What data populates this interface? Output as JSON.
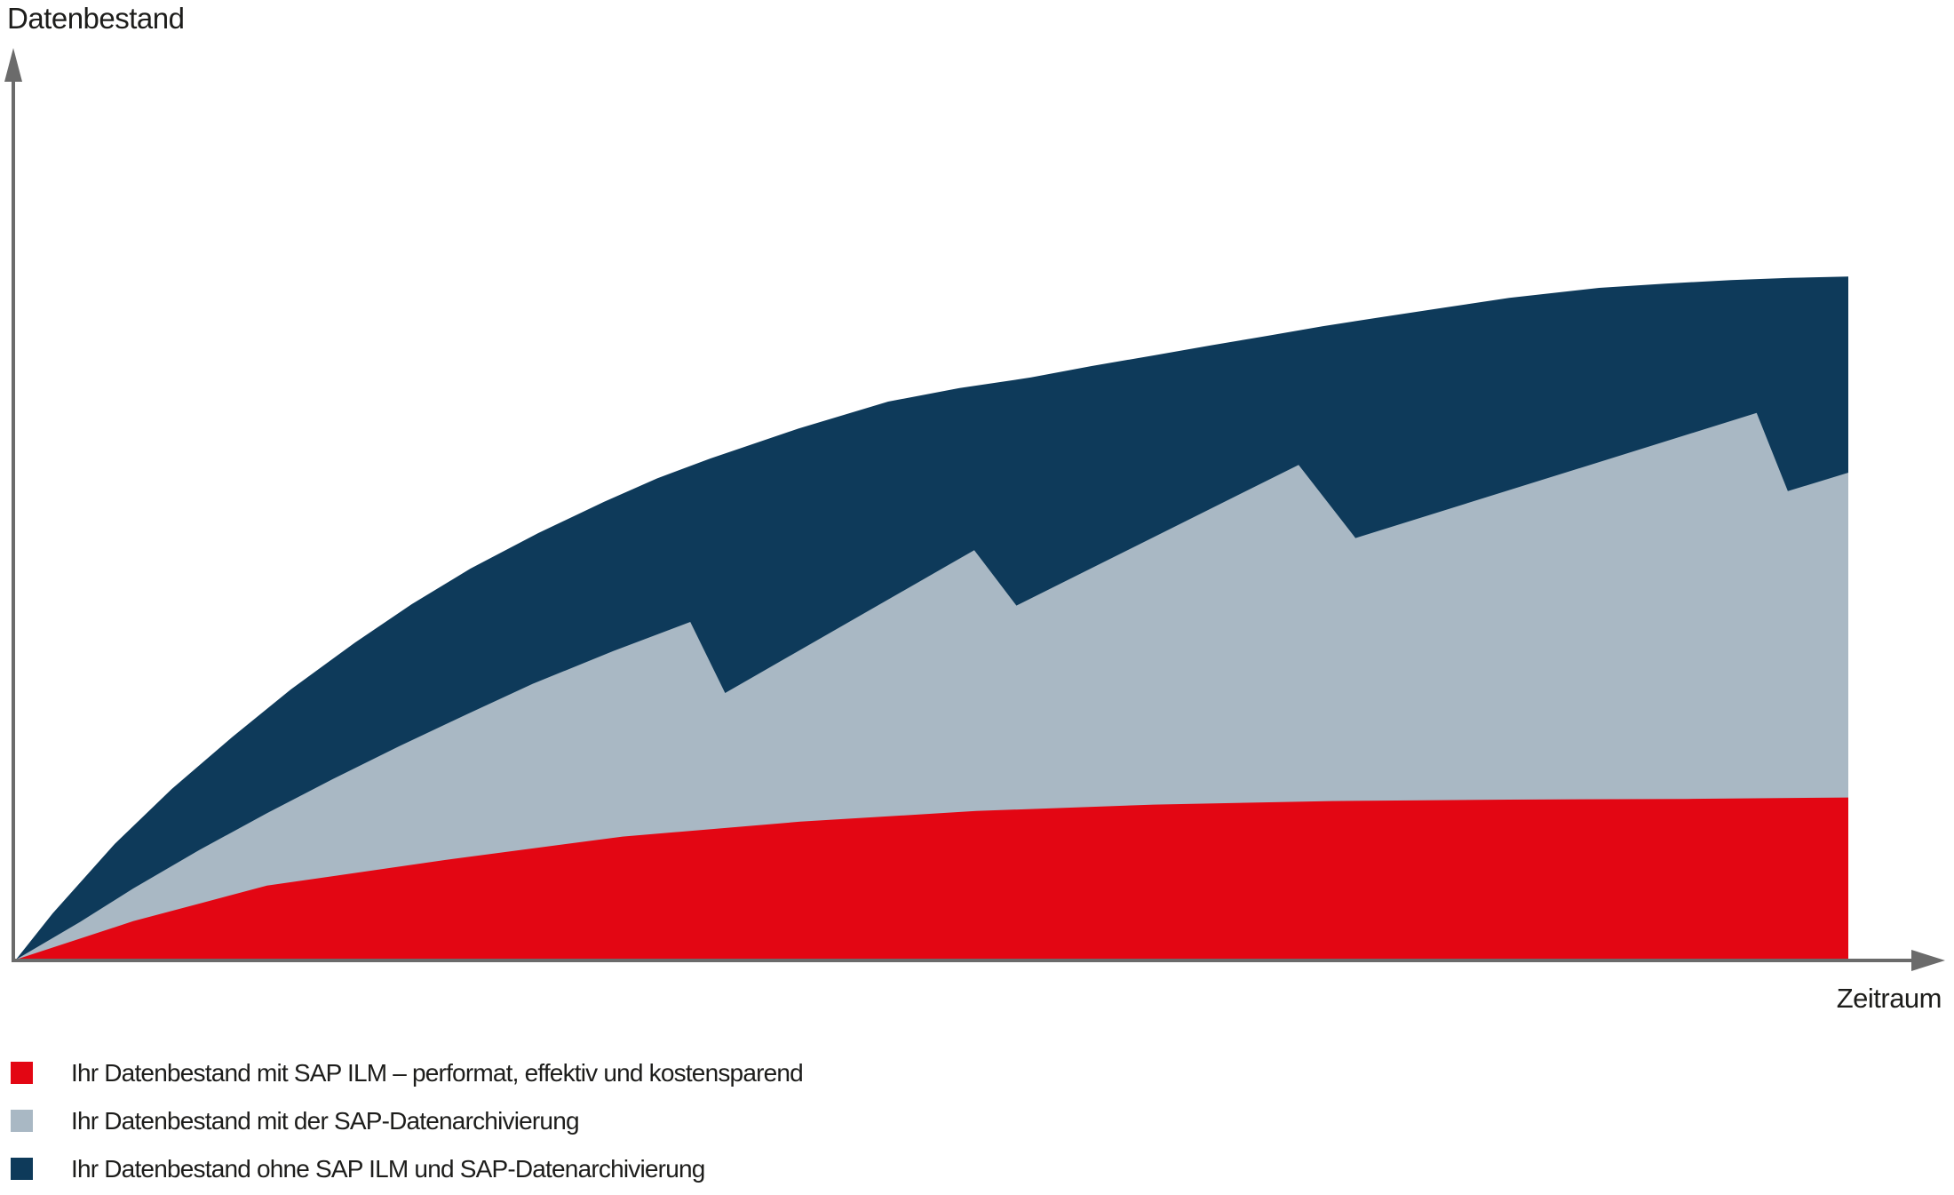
{
  "chart_data": {
    "type": "area",
    "title": "",
    "y_axis_title": "Datenbestand",
    "x_axis_title": "Zeitraum",
    "x_axis": {
      "range": [
        0,
        100
      ],
      "ticks": [],
      "label": "Zeitraum",
      "qualitative": true
    },
    "y_axis": {
      "range": [
        0,
        100
      ],
      "ticks": [],
      "label": "Datenbestand",
      "qualitative": true
    },
    "grid": false,
    "legend_position": "bottom-left",
    "background": "#ffffff",
    "axis_color": "#6b6b6b",
    "note_units": "normalized 0-100 on both axes (chart has no numeric scale)",
    "series": [
      {
        "id": "mit-sap-ilm",
        "name": "Ihr Datenbestand mit SAP ILM – performat, effektiv und kostensparend",
        "color": "#e30613",
        "shape": "smooth saturating curve, nearly flat after mid-chart",
        "points": [
          [
            0,
            0
          ],
          [
            6.4,
            5.4
          ],
          [
            13.7,
            10.4
          ],
          [
            23.4,
            14.0
          ],
          [
            33.1,
            17.3
          ],
          [
            42.8,
            19.4
          ],
          [
            52.4,
            20.9
          ],
          [
            62.1,
            21.8
          ],
          [
            71.8,
            22.3
          ],
          [
            81.5,
            22.5
          ],
          [
            91.2,
            22.6
          ],
          [
            100,
            22.8
          ]
        ]
      },
      {
        "id": "mit-datenarchivierung",
        "name": "Ihr Datenbestand mit der SAP-Datenarchivierung",
        "color": "#a9b8c4",
        "shape": "sawtooth: growth with 4 archiving drops",
        "points": [
          [
            0,
            0
          ],
          [
            3.5,
            5.3
          ],
          [
            6.4,
            10.0
          ],
          [
            10.0,
            15.4
          ],
          [
            13.7,
            20.6
          ],
          [
            17.3,
            25.4
          ],
          [
            20.9,
            30.0
          ],
          [
            24.6,
            34.5
          ],
          [
            28.2,
            38.8
          ],
          [
            32.6,
            43.4
          ],
          [
            36.8,
            47.5
          ],
          [
            38.7,
            37.5
          ],
          [
            52.3,
            57.6
          ],
          [
            54.6,
            49.8
          ],
          [
            70.0,
            69.6
          ],
          [
            73.1,
            59.3
          ],
          [
            95.0,
            76.9
          ],
          [
            96.7,
            65.9
          ],
          [
            100,
            68.5
          ]
        ]
      },
      {
        "id": "ohne-ilm-und-archivierung",
        "name": "Ihr Datenbestand ohne SAP ILM und SAP-Datenarchivierung",
        "color": "#0e3a5a",
        "shape": "smooth saturating growth curve",
        "points": [
          [
            0,
            0
          ],
          [
            2,
            6.5
          ],
          [
            5.4,
            16.3
          ],
          [
            8.5,
            24.0
          ],
          [
            11.8,
            31.3
          ],
          [
            15,
            38.0
          ],
          [
            18.5,
            44.6
          ],
          [
            21.6,
            50.0
          ],
          [
            24.8,
            55.0
          ],
          [
            28.5,
            60.0
          ],
          [
            32.1,
            64.4
          ],
          [
            35,
            67.7
          ],
          [
            37.9,
            70.5
          ],
          [
            42.7,
            74.7
          ],
          [
            47.6,
            78.5
          ],
          [
            51.5,
            80.4
          ],
          [
            55.4,
            81.9
          ],
          [
            58.7,
            83.5
          ],
          [
            62.1,
            85.0
          ],
          [
            65.2,
            86.4
          ],
          [
            68.4,
            87.8
          ],
          [
            71.3,
            89.1
          ],
          [
            74.3,
            90.3
          ],
          [
            77.9,
            91.7
          ],
          [
            81.5,
            93.1
          ],
          [
            86.4,
            94.5
          ],
          [
            90,
            95.1
          ],
          [
            93.6,
            95.6
          ],
          [
            96.8,
            95.9
          ],
          [
            100,
            96.1
          ]
        ]
      }
    ]
  },
  "legend": {
    "items": [
      {
        "label": "Ihr Datenbestand mit SAP ILM – performat, effektiv und kostensparend",
        "color": "#e30613"
      },
      {
        "label": "Ihr Datenbestand mit der SAP-Datenarchivierung",
        "color": "#a9b8c4"
      },
      {
        "label": "Ihr Datenbestand ohne SAP ILM und SAP-Datenarchivierung",
        "color": "#0e3a5a"
      }
    ]
  }
}
